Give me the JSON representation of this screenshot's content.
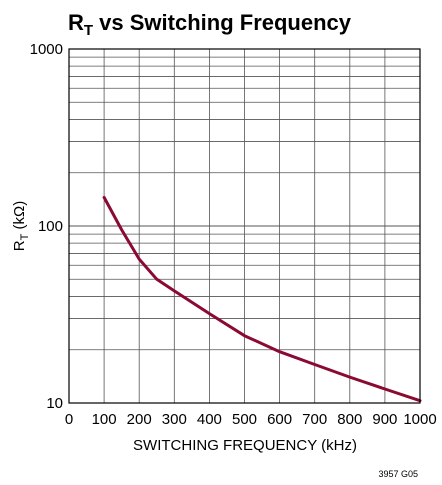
{
  "chart_data": {
    "type": "line",
    "title_main": "R",
    "title_sub": "T",
    "title_rest": " vs Switching Frequency",
    "xlabel": "SWITCHING FREQUENCY (kHz)",
    "ylabel_main": "R",
    "ylabel_sub": "T",
    "ylabel_rest": " (kΩ)",
    "xlim": [
      0,
      1000
    ],
    "ylim": [
      10,
      1000
    ],
    "yscale": "log",
    "grid": true,
    "x_ticks": [
      0,
      100,
      200,
      300,
      400,
      500,
      600,
      700,
      800,
      900,
      1000
    ],
    "y_ticks": [
      10,
      100,
      1000
    ],
    "series": [
      {
        "color": "#8b0a32",
        "x": [
          100,
          150,
          200,
          250,
          300,
          400,
          500,
          600,
          700,
          800,
          900,
          1000
        ],
        "y": [
          145,
          95,
          65,
          50,
          43,
          32,
          24,
          19.5,
          16.5,
          14,
          12,
          10.3
        ]
      }
    ],
    "footnote": "3957 G05"
  }
}
